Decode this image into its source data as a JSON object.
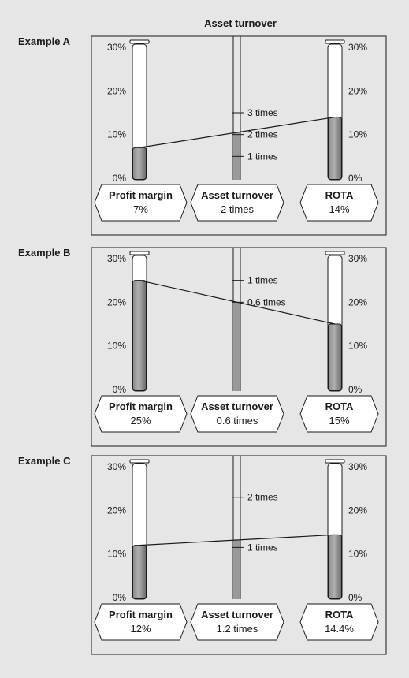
{
  "header": {
    "title": "Asset turnover"
  },
  "scale": {
    "ticks": [
      "0%",
      "10%",
      "20%",
      "30%"
    ],
    "tick_values": [
      0,
      10,
      20,
      30
    ],
    "max": 30
  },
  "examples": [
    {
      "label": "Example A",
      "profit_margin": 7,
      "rota": 14,
      "turnover_value": 2,
      "turnover_ticks": [
        {
          "label": "3 times",
          "level": 15
        },
        {
          "label": "2 times",
          "level": 10
        },
        {
          "label": "1 times",
          "level": 5
        }
      ],
      "boxes": [
        {
          "title": "Profit margin",
          "value": "7%"
        },
        {
          "title": "Asset turnover",
          "value": "2 times"
        },
        {
          "title": "ROTA",
          "value": "14%"
        }
      ]
    },
    {
      "label": "Example B",
      "profit_margin": 25,
      "rota": 15,
      "turnover_value": 0.6,
      "turnover_ticks": [
        {
          "label": "1 times",
          "level": 25
        },
        {
          "label": "0.6 times",
          "level": 20
        }
      ],
      "boxes": [
        {
          "title": "Profit margin",
          "value": "25%"
        },
        {
          "title": "Asset turnover",
          "value": "0.6 times"
        },
        {
          "title": "ROTA",
          "value": "15%"
        }
      ]
    },
    {
      "label": "Example C",
      "profit_margin": 12,
      "rota": 14.4,
      "turnover_value": 1.2,
      "turnover_ticks": [
        {
          "label": "2 times",
          "level": 23
        },
        {
          "label": "1 times",
          "level": 11.5
        }
      ],
      "boxes": [
        {
          "title": "Profit margin",
          "value": "12%"
        },
        {
          "title": "Asset turnover",
          "value": "1.2 times"
        },
        {
          "title": "ROTA",
          "value": "14.4%"
        }
      ]
    }
  ],
  "colors": {
    "background": "#e6e6e6",
    "fill": "#999999",
    "fill_dark": "#6e6e6e",
    "line": "#1a1a1a",
    "tube_bg": "#ffffff"
  }
}
